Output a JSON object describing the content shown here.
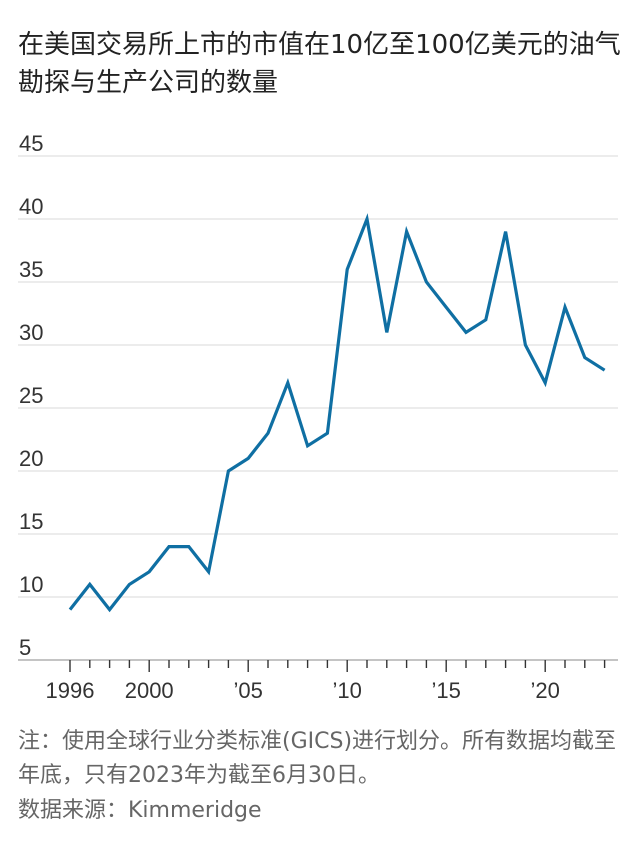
{
  "chart_data": {
    "type": "line",
    "title": "在美国交易所上市的市值在10亿至100亿美元的油气勘探与生产公司的数量",
    "xlabel": "",
    "ylabel": "",
    "x": [
      1996,
      1997,
      1998,
      1999,
      2000,
      2001,
      2002,
      2003,
      2004,
      2005,
      2006,
      2007,
      2008,
      2009,
      2010,
      2011,
      2012,
      2013,
      2014,
      2015,
      2016,
      2017,
      2018,
      2019,
      2020,
      2021,
      2022,
      2023
    ],
    "values": [
      9,
      11,
      9,
      11,
      12,
      14,
      14,
      12,
      20,
      21,
      23,
      27,
      22,
      23,
      36,
      40,
      31,
      39,
      35,
      33,
      31,
      32,
      39,
      30,
      27,
      33,
      29,
      28
    ],
    "ylim": [
      5,
      45
    ],
    "xlim": [
      1996,
      2023.5
    ],
    "y_ticks": [
      45,
      40,
      35,
      30,
      25,
      20,
      15,
      10,
      5
    ],
    "x_tick_labels": [
      {
        "year": 1996,
        "label": "1996"
      },
      {
        "year": 2000,
        "label": "2000"
      },
      {
        "year": 2005,
        "label": "’05"
      },
      {
        "year": 2010,
        "label": "’10"
      },
      {
        "year": 2015,
        "label": "’15"
      },
      {
        "year": 2020,
        "label": "’20"
      }
    ],
    "grid": true,
    "line_color": "#0f6fa3",
    "grid_color": "#d9d9d9",
    "note": "注：使用全球行业分类标准(GICS)进行划分。所有数据均截至年底，只有2023年为截至6月30日。",
    "source": "数据来源：Kimmeridge"
  }
}
